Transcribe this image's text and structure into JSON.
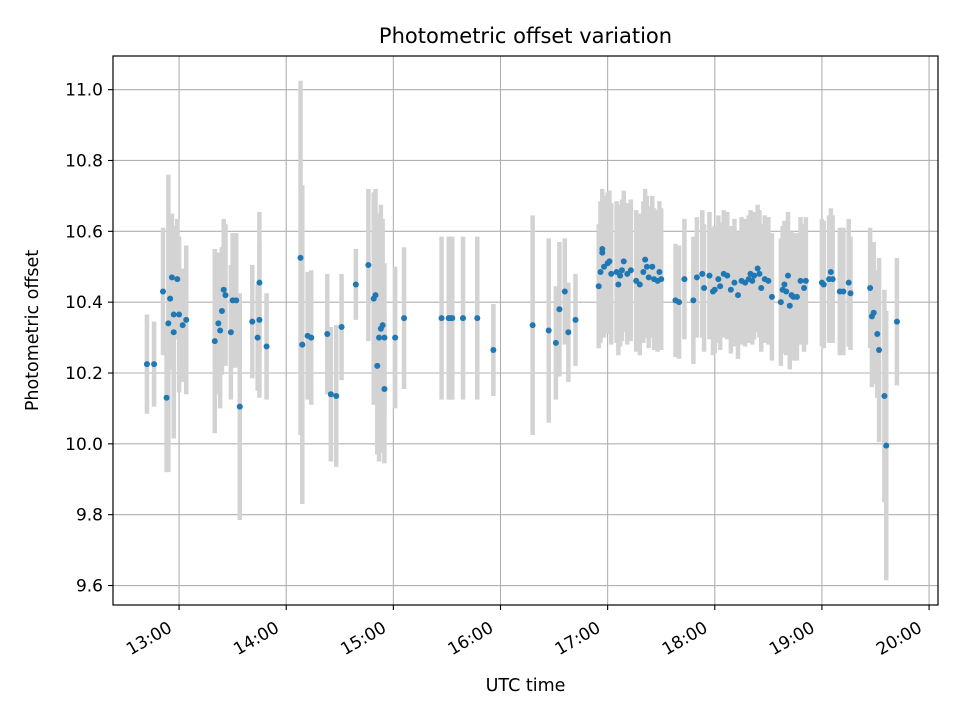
{
  "chart_data": {
    "type": "scatter",
    "title": "Photometric offset variation",
    "xlabel": "UTC time",
    "ylabel": "Photometric offset",
    "x_format": "HH:MM",
    "xlim": [
      "12:23",
      "20:05"
    ],
    "ylim": [
      9.545,
      11.095
    ],
    "x_ticks": [
      "13:00",
      "14:00",
      "15:00",
      "16:00",
      "17:00",
      "18:00",
      "19:00",
      "20:00"
    ],
    "y_ticks": [
      9.6,
      9.8,
      10.0,
      10.2,
      10.4,
      10.6,
      10.8,
      11.0
    ],
    "y_tick_labels": [
      "9.6",
      "9.8",
      "10.0",
      "10.2",
      "10.4",
      "10.6",
      "10.8",
      "11.0"
    ],
    "grid": true,
    "marker_color": "#1f77b4",
    "errorbar_color": "#d3d3d3",
    "series": [
      {
        "points": [
          {
            "x": "12:42",
            "y": 10.225,
            "err": 0.14
          },
          {
            "x": "12:46",
            "y": 10.225,
            "err": 0.12
          },
          {
            "x": "12:51",
            "y": 10.43,
            "err": 0.18
          },
          {
            "x": "12:53",
            "y": 10.13,
            "err": 0.21
          },
          {
            "x": "12:54",
            "y": 10.34,
            "err": 0.42
          },
          {
            "x": "12:55",
            "y": 10.41,
            "err": 0.2
          },
          {
            "x": "12:56",
            "y": 10.47,
            "err": 0.18
          },
          {
            "x": "12:57",
            "y": 10.315,
            "err": 0.3
          },
          {
            "x": "12:57",
            "y": 10.365,
            "err": 0.23
          },
          {
            "x": "12:59",
            "y": 10.465,
            "err": 0.17
          },
          {
            "x": "13:00",
            "y": 10.365,
            "err": 0.22
          },
          {
            "x": "13:02",
            "y": 10.335,
            "err": 0.16
          },
          {
            "x": "13:04",
            "y": 10.35,
            "err": 0.21
          },
          {
            "x": "13:20",
            "y": 10.29,
            "err": 0.26
          },
          {
            "x": "13:22",
            "y": 10.34,
            "err": 0.2
          },
          {
            "x": "13:23",
            "y": 10.32,
            "err": 0.22
          },
          {
            "x": "13:24",
            "y": 10.375,
            "err": 0.18
          },
          {
            "x": "13:25",
            "y": 10.435,
            "err": 0.2
          },
          {
            "x": "13:26",
            "y": 10.42,
            "err": 0.2
          },
          {
            "x": "13:29",
            "y": 10.315,
            "err": 0.19
          },
          {
            "x": "13:30",
            "y": 10.405,
            "err": 0.19
          },
          {
            "x": "13:32",
            "y": 10.405,
            "err": 0.19
          },
          {
            "x": "13:34",
            "y": 10.105,
            "err": 0.32
          },
          {
            "x": "13:41",
            "y": 10.345,
            "err": 0.16
          },
          {
            "x": "13:44",
            "y": 10.3,
            "err": 0.15
          },
          {
            "x": "13:45",
            "y": 10.455,
            "err": 0.2
          },
          {
            "x": "13:45",
            "y": 10.35,
            "err": 0.22
          },
          {
            "x": "13:49",
            "y": 10.275,
            "err": 0.15
          },
          {
            "x": "14:08",
            "y": 10.525,
            "err": 0.5
          },
          {
            "x": "14:09",
            "y": 10.28,
            "err": 0.45
          },
          {
            "x": "14:12",
            "y": 10.305,
            "err": 0.18
          },
          {
            "x": "14:14",
            "y": 10.3,
            "err": 0.19
          },
          {
            "x": "14:23",
            "y": 10.31,
            "err": 0.17
          },
          {
            "x": "14:25",
            "y": 10.14,
            "err": 0.19
          },
          {
            "x": "14:28",
            "y": 10.135,
            "err": 0.2
          },
          {
            "x": "14:31",
            "y": 10.33,
            "err": 0.15
          },
          {
            "x": "14:39",
            "y": 10.45,
            "err": 0.1
          },
          {
            "x": "14:46",
            "y": 10.505,
            "err": 0.215
          },
          {
            "x": "14:49",
            "y": 10.41,
            "err": 0.3
          },
          {
            "x": "14:50",
            "y": 10.42,
            "err": 0.3
          },
          {
            "x": "14:51",
            "y": 10.22,
            "err": 0.25
          },
          {
            "x": "14:52",
            "y": 10.3,
            "err": 0.35
          },
          {
            "x": "14:53",
            "y": 10.325,
            "err": 0.35
          },
          {
            "x": "14:54",
            "y": 10.335,
            "err": 0.3
          },
          {
            "x": "14:55",
            "y": 10.3,
            "err": 0.21
          },
          {
            "x": "14:55",
            "y": 10.155,
            "err": 0.21
          },
          {
            "x": "15:01",
            "y": 10.3,
            "err": 0.2
          },
          {
            "x": "15:06",
            "y": 10.355,
            "err": 0.2
          },
          {
            "x": "15:27",
            "y": 10.355,
            "err": 0.23
          },
          {
            "x": "15:31",
            "y": 10.355,
            "err": 0.23
          },
          {
            "x": "15:32",
            "y": 10.355,
            "err": 0.23
          },
          {
            "x": "15:33",
            "y": 10.355,
            "err": 0.23
          },
          {
            "x": "15:39",
            "y": 10.355,
            "err": 0.23
          },
          {
            "x": "15:47",
            "y": 10.355,
            "err": 0.23
          },
          {
            "x": "15:56",
            "y": 10.265,
            "err": 0.13
          },
          {
            "x": "16:18",
            "y": 10.335,
            "err": 0.31
          },
          {
            "x": "16:27",
            "y": 10.32,
            "err": 0.26
          },
          {
            "x": "16:31",
            "y": 10.285,
            "err": 0.16
          },
          {
            "x": "16:33",
            "y": 10.38,
            "err": 0.19
          },
          {
            "x": "16:36",
            "y": 10.43,
            "err": 0.15
          },
          {
            "x": "16:38",
            "y": 10.315,
            "err": 0.14
          },
          {
            "x": "16:42",
            "y": 10.35,
            "err": 0.13
          },
          {
            "x": "16:55",
            "y": 10.445,
            "err": 0.175
          },
          {
            "x": "16:56",
            "y": 10.485,
            "err": 0.2
          },
          {
            "x": "16:57",
            "y": 10.55,
            "err": 0.17
          },
          {
            "x": "16:57",
            "y": 10.54,
            "err": 0.17
          },
          {
            "x": "16:58",
            "y": 10.5,
            "err": 0.2
          },
          {
            "x": "17:00",
            "y": 10.51,
            "err": 0.2
          },
          {
            "x": "17:01",
            "y": 10.515,
            "err": 0.2
          },
          {
            "x": "17:02",
            "y": 10.48,
            "err": 0.2
          },
          {
            "x": "17:05",
            "y": 10.485,
            "err": 0.2
          },
          {
            "x": "17:06",
            "y": 10.45,
            "err": 0.2
          },
          {
            "x": "17:07",
            "y": 10.475,
            "err": 0.2
          },
          {
            "x": "17:08",
            "y": 10.49,
            "err": 0.2
          },
          {
            "x": "17:09",
            "y": 10.515,
            "err": 0.2
          },
          {
            "x": "17:11",
            "y": 10.48,
            "err": 0.2
          },
          {
            "x": "17:13",
            "y": 10.49,
            "err": 0.2
          },
          {
            "x": "17:16",
            "y": 10.46,
            "err": 0.2
          },
          {
            "x": "17:18",
            "y": 10.45,
            "err": 0.2
          },
          {
            "x": "17:20",
            "y": 10.485,
            "err": 0.2
          },
          {
            "x": "17:21",
            "y": 10.52,
            "err": 0.2
          },
          {
            "x": "17:22",
            "y": 10.5,
            "err": 0.2
          },
          {
            "x": "17:23",
            "y": 10.47,
            "err": 0.2
          },
          {
            "x": "17:25",
            "y": 10.5,
            "err": 0.2
          },
          {
            "x": "17:26",
            "y": 10.465,
            "err": 0.2
          },
          {
            "x": "17:28",
            "y": 10.46,
            "err": 0.2
          },
          {
            "x": "17:29",
            "y": 10.485,
            "err": 0.2
          },
          {
            "x": "17:30",
            "y": 10.465,
            "err": 0.2
          },
          {
            "x": "17:38",
            "y": 10.405,
            "err": 0.16
          },
          {
            "x": "17:40",
            "y": 10.4,
            "err": 0.16
          },
          {
            "x": "17:43",
            "y": 10.465,
            "err": 0.17
          },
          {
            "x": "17:48",
            "y": 10.405,
            "err": 0.18
          },
          {
            "x": "17:50",
            "y": 10.47,
            "err": 0.17
          },
          {
            "x": "17:53",
            "y": 10.48,
            "err": 0.18
          },
          {
            "x": "17:54",
            "y": 10.44,
            "err": 0.18
          },
          {
            "x": "17:57",
            "y": 10.475,
            "err": 0.18
          },
          {
            "x": "17:59",
            "y": 10.43,
            "err": 0.18
          },
          {
            "x": "18:00",
            "y": 10.435,
            "err": 0.18
          },
          {
            "x": "18:02",
            "y": 10.465,
            "err": 0.18
          },
          {
            "x": "18:03",
            "y": 10.445,
            "err": 0.18
          },
          {
            "x": "18:05",
            "y": 10.48,
            "err": 0.18
          },
          {
            "x": "18:07",
            "y": 10.475,
            "err": 0.18
          },
          {
            "x": "18:09",
            "y": 10.435,
            "err": 0.18
          },
          {
            "x": "18:11",
            "y": 10.455,
            "err": 0.18
          },
          {
            "x": "18:13",
            "y": 10.42,
            "err": 0.18
          },
          {
            "x": "18:15",
            "y": 10.46,
            "err": 0.18
          },
          {
            "x": "18:17",
            "y": 10.455,
            "err": 0.18
          },
          {
            "x": "18:19",
            "y": 10.465,
            "err": 0.18
          },
          {
            "x": "18:20",
            "y": 10.48,
            "err": 0.18
          },
          {
            "x": "18:21",
            "y": 10.46,
            "err": 0.18
          },
          {
            "x": "18:22",
            "y": 10.475,
            "err": 0.18
          },
          {
            "x": "18:24",
            "y": 10.495,
            "err": 0.18
          },
          {
            "x": "18:25",
            "y": 10.48,
            "err": 0.18
          },
          {
            "x": "18:26",
            "y": 10.44,
            "err": 0.18
          },
          {
            "x": "18:28",
            "y": 10.465,
            "err": 0.18
          },
          {
            "x": "18:30",
            "y": 10.46,
            "err": 0.18
          },
          {
            "x": "18:32",
            "y": 10.415,
            "err": 0.18
          },
          {
            "x": "18:37",
            "y": 10.4,
            "err": 0.18
          },
          {
            "x": "18:38",
            "y": 10.435,
            "err": 0.18
          },
          {
            "x": "18:39",
            "y": 10.45,
            "err": 0.18
          },
          {
            "x": "18:40",
            "y": 10.43,
            "err": 0.18
          },
          {
            "x": "18:41",
            "y": 10.475,
            "err": 0.18
          },
          {
            "x": "18:42",
            "y": 10.39,
            "err": 0.18
          },
          {
            "x": "18:43",
            "y": 10.42,
            "err": 0.18
          },
          {
            "x": "18:44",
            "y": 10.415,
            "err": 0.18
          },
          {
            "x": "18:46",
            "y": 10.415,
            "err": 0.18
          },
          {
            "x": "18:48",
            "y": 10.46,
            "err": 0.18
          },
          {
            "x": "18:50",
            "y": 10.44,
            "err": 0.18
          },
          {
            "x": "18:51",
            "y": 10.46,
            "err": 0.18
          },
          {
            "x": "19:00",
            "y": 10.455,
            "err": 0.18
          },
          {
            "x": "19:01",
            "y": 10.45,
            "err": 0.18
          },
          {
            "x": "19:04",
            "y": 10.465,
            "err": 0.18
          },
          {
            "x": "19:05",
            "y": 10.485,
            "err": 0.18
          },
          {
            "x": "19:06",
            "y": 10.465,
            "err": 0.18
          },
          {
            "x": "19:10",
            "y": 10.43,
            "err": 0.18
          },
          {
            "x": "19:12",
            "y": 10.43,
            "err": 0.18
          },
          {
            "x": "19:15",
            "y": 10.455,
            "err": 0.18
          },
          {
            "x": "19:16",
            "y": 10.425,
            "err": 0.16
          },
          {
            "x": "19:27",
            "y": 10.44,
            "err": 0.17
          },
          {
            "x": "19:28",
            "y": 10.36,
            "err": 0.2
          },
          {
            "x": "19:29",
            "y": 10.37,
            "err": 0.2
          },
          {
            "x": "19:31",
            "y": 10.31,
            "err": 0.18
          },
          {
            "x": "19:32",
            "y": 10.265,
            "err": 0.26
          },
          {
            "x": "19:35",
            "y": 10.135,
            "err": 0.3
          },
          {
            "x": "19:36",
            "y": 9.995,
            "err": 0.38
          },
          {
            "x": "19:42",
            "y": 10.345,
            "err": 0.18
          }
        ]
      }
    ]
  }
}
